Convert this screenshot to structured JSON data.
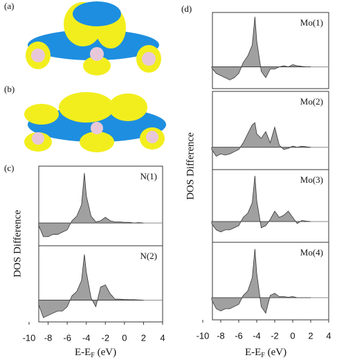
{
  "figure": {
    "panel_labels": [
      "(a)",
      "(b)",
      "(c)",
      "(d)"
    ],
    "groups": [
      {
        "ylabel": "DOS Difference",
        "xlabel": [
          "E-E",
          "F",
          " (eV)"
        ]
      },
      {
        "ylabel": "DOS Difference",
        "xlabel": [
          "E-E",
          "F",
          " (eV)"
        ]
      }
    ]
  },
  "chart_data": [
    {
      "type": "area",
      "label": "N(1)",
      "color": "#a0a0a0",
      "xlim": [
        -10,
        4
      ],
      "ylim": [
        -1,
        2.5
      ],
      "x": [
        -9,
        -8.5,
        -8,
        -7.5,
        -7,
        -6.5,
        -6,
        -5.5,
        -5,
        -4.5,
        -4.2,
        -4,
        -3.5,
        -3,
        -2.5,
        -2,
        -1.5,
        -1,
        -0.5,
        0,
        0.5,
        1,
        1.5,
        2
      ],
      "values": [
        -0.1,
        -0.6,
        -0.6,
        -0.5,
        -0.5,
        -0.4,
        -0.3,
        0.1,
        0.3,
        0.8,
        2.2,
        1.2,
        0.3,
        0.05,
        0.1,
        0.25,
        0.1,
        0.05,
        0.05,
        0.03,
        0.03,
        0,
        0.02,
        0
      ]
    },
    {
      "type": "area",
      "label": "N(2)",
      "color": "#a0a0a0",
      "xlim": [
        -10,
        4
      ],
      "ylim": [
        -1,
        2.5
      ],
      "xticks": [
        -10,
        -8,
        -6,
        -4,
        -2,
        0,
        2,
        4
      ],
      "x": [
        -9,
        -8.5,
        -8,
        -7.5,
        -7,
        -6.5,
        -6,
        -5.5,
        -5,
        -4.5,
        -4.2,
        -4,
        -3.5,
        -3,
        -2.5,
        -2,
        -1.5,
        -1,
        -0.5,
        0,
        0.5,
        1,
        1.5,
        2
      ],
      "values": [
        -0.2,
        -0.8,
        -0.7,
        -0.6,
        -0.5,
        -0.5,
        -0.3,
        0.2,
        0.4,
        0.9,
        2.1,
        1.3,
        0.1,
        -0.3,
        0.6,
        0.7,
        0.3,
        0.05,
        0.05,
        0.03,
        0.02,
        0.02,
        0.01,
        0
      ]
    },
    {
      "type": "area",
      "label": "Mo(1)",
      "color": "#a0a0a0",
      "xlim": [
        -10,
        4
      ],
      "ylim": [
        -1,
        2.5
      ],
      "x": [
        -9,
        -8.5,
        -8,
        -7.5,
        -7,
        -6.5,
        -6,
        -5.5,
        -5,
        -4.5,
        -4.2,
        -4,
        -3.5,
        -3,
        -2.5,
        -2,
        -1.5,
        -1,
        -0.5,
        0,
        0.5,
        1,
        1.5,
        2
      ],
      "values": [
        -0.05,
        -0.3,
        -0.4,
        -0.5,
        -0.6,
        -0.5,
        -0.3,
        0.2,
        0.5,
        1.0,
        2.3,
        1.2,
        -0.2,
        -0.5,
        -0.1,
        -0.1,
        0,
        0.05,
        0,
        0.1,
        0.05,
        0.02,
        0,
        0
      ]
    },
    {
      "type": "area",
      "label": "Mo(2)",
      "color": "#a0a0a0",
      "xlim": [
        -10,
        4
      ],
      "ylim": [
        -1,
        2.5
      ],
      "x": [
        -9,
        -8.5,
        -8,
        -7.5,
        -7,
        -6.5,
        -6,
        -5.5,
        -5,
        -4.5,
        -4.2,
        -4,
        -3.5,
        -3,
        -2.5,
        -2,
        -1.5,
        -1,
        -0.5,
        0,
        0.5,
        1,
        1.5,
        2
      ],
      "values": [
        -0.1,
        -0.4,
        -0.3,
        -0.35,
        -0.3,
        -0.2,
        -0.1,
        0.2,
        0.6,
        1.0,
        1.1,
        0.6,
        0.4,
        0.7,
        0.2,
        0.9,
        0.1,
        -0.1,
        -0.05,
        0.05,
        0,
        0.05,
        0.02,
        0
      ]
    },
    {
      "type": "area",
      "label": "Mo(3)",
      "color": "#a0a0a0",
      "xlim": [
        -10,
        4
      ],
      "ylim": [
        -1,
        2.5
      ],
      "x": [
        -9,
        -8.5,
        -8,
        -7.5,
        -7,
        -6.5,
        -6,
        -5.5,
        -5,
        -4.5,
        -4.2,
        -4,
        -3.5,
        -3,
        -2.5,
        -2,
        -1.5,
        -1,
        -0.5,
        0,
        0.5,
        1,
        1.5,
        2
      ],
      "values": [
        -0.1,
        -0.4,
        -0.5,
        -0.4,
        -0.4,
        -0.3,
        -0.2,
        0.2,
        0.4,
        0.9,
        2.2,
        1.0,
        -0.3,
        -0.2,
        0.1,
        0.5,
        0.2,
        0.3,
        0.5,
        0.2,
        -0.1,
        0.05,
        0.02,
        0
      ]
    },
    {
      "type": "area",
      "label": "Mo(4)",
      "color": "#a0a0a0",
      "xlim": [
        -10,
        4
      ],
      "ylim": [
        -1,
        2.5
      ],
      "xticks": [
        -10,
        -8,
        -6,
        -4,
        -2,
        0,
        2,
        4
      ],
      "x": [
        -9,
        -8.5,
        -8,
        -7.5,
        -7,
        -6.5,
        -6,
        -5.5,
        -5,
        -4.5,
        -4.2,
        -4,
        -3.5,
        -3,
        -2.5,
        -2,
        -1.5,
        -1,
        -0.5,
        0,
        0.5,
        1,
        1.5,
        2
      ],
      "values": [
        -0.1,
        -0.5,
        -0.6,
        -0.5,
        -0.5,
        -0.4,
        -0.3,
        0.1,
        0.3,
        0.9,
        2.2,
        1.1,
        -0.4,
        -0.7,
        0.1,
        0.2,
        0.05,
        0.05,
        0.02,
        0.05,
        0,
        0,
        0,
        0
      ]
    }
  ]
}
